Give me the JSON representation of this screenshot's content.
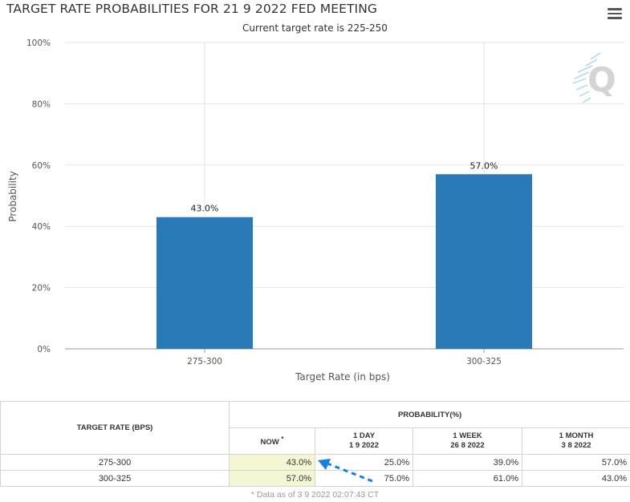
{
  "header": {
    "title": "TARGET RATE PROBABILITIES FOR 21 9 2022 FED MEETING",
    "subtitle": "Current target rate is 225-250",
    "logo_letter": "Q"
  },
  "chart_data": {
    "type": "bar",
    "title": "TARGET RATE PROBABILITIES FOR 21 9 2022 FED MEETING",
    "subtitle": "Current target rate is 225-250",
    "categories": [
      "275-300",
      "300-325"
    ],
    "values": [
      43.0,
      57.0
    ],
    "data_labels": [
      "43.0%",
      "57.0%"
    ],
    "xlabel": "Target Rate (in bps)",
    "ylabel": "Probability",
    "ylim": [
      0,
      100
    ],
    "yticks": [
      0,
      20,
      40,
      60,
      80,
      100
    ],
    "ytick_labels": [
      "0%",
      "20%",
      "40%",
      "60%",
      "80%",
      "100%"
    ],
    "grid": true,
    "bar_color": "#2a7ab8"
  },
  "table": {
    "col_target": "TARGET RATE (BPS)",
    "col_probability": "PROBABILITY(%)",
    "sub_now": "NOW",
    "sub_now_mark": "*",
    "sub_day": "1 DAY",
    "sub_day_date": "1 9 2022",
    "sub_week": "1 WEEK",
    "sub_week_date": "26 8 2022",
    "sub_month": "1 MONTH",
    "sub_month_date": "3 8 2022",
    "rows": [
      {
        "rate": "275-300",
        "now": "43.0%",
        "day": "25.0%",
        "week": "39.0%",
        "month": "57.0%"
      },
      {
        "rate": "300-325",
        "now": "57.0%",
        "day": "75.0%",
        "week": "61.0%",
        "month": "43.0%"
      }
    ],
    "note": "* Data as of 3 9 2022 02:07:43 CT"
  }
}
